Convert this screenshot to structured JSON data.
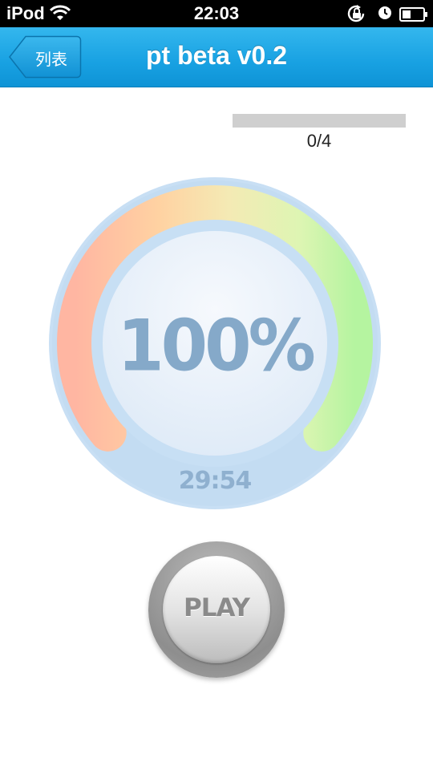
{
  "status_bar": {
    "carrier": "iPod",
    "time": "22:03"
  },
  "nav": {
    "back_label": "列表",
    "title": "pt beta v0.2"
  },
  "progress": {
    "count_text": "0/4",
    "fraction": 0
  },
  "gauge": {
    "percent_text": "100%",
    "time_text": "29:54",
    "level": 1.0
  },
  "play": {
    "label": "PLAY"
  },
  "colors": {
    "nav_blue": "#1aa3e4",
    "gauge_text": "#85a9c9",
    "gauge_ring": "#c6dff4"
  },
  "icons": [
    "wifi-icon",
    "rotation-lock-icon",
    "alarm-icon",
    "battery-icon",
    "back-arrow-icon"
  ]
}
